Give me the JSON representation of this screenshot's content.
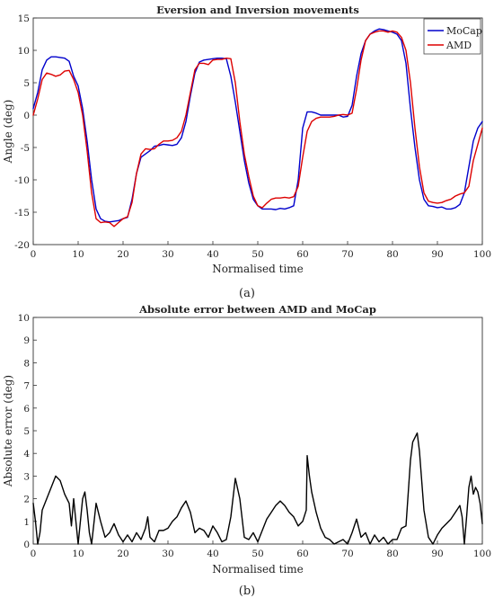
{
  "chart_data": [
    {
      "type": "line",
      "panel_label": "(a)",
      "title": "Eversion and Inversion movements",
      "xlabel": "Normalised time",
      "ylabel": "Angle (deg)",
      "xlim": [
        0,
        100
      ],
      "ylim": [
        -20,
        15
      ],
      "xticks": [
        0,
        10,
        20,
        30,
        40,
        50,
        60,
        70,
        80,
        90,
        100
      ],
      "yticks": [
        -20,
        -15,
        -10,
        -5,
        0,
        5,
        10,
        15
      ],
      "grid": true,
      "legend_position": "top-right",
      "series": [
        {
          "name": "MoCap",
          "color": "#0000cc",
          "x": [
            0,
            1,
            2,
            3,
            4,
            5,
            6,
            7,
            8,
            9,
            10,
            11,
            12,
            13,
            14,
            15,
            16,
            17,
            18,
            19,
            20,
            21,
            22,
            23,
            24,
            25,
            26,
            27,
            28,
            29,
            30,
            31,
            32,
            33,
            34,
            35,
            36,
            37,
            38,
            39,
            40,
            41,
            42,
            43,
            44,
            45,
            46,
            47,
            48,
            49,
            50,
            51,
            52,
            53,
            54,
            55,
            56,
            57,
            58,
            59,
            60,
            61,
            62,
            63,
            64,
            65,
            66,
            67,
            68,
            69,
            70,
            71,
            72,
            73,
            74,
            75,
            76,
            77,
            78,
            79,
            80,
            81,
            82,
            83,
            84,
            85,
            86,
            87,
            88,
            89,
            90,
            91,
            92,
            93,
            94,
            95,
            96,
            97,
            98,
            99,
            100
          ],
          "y": [
            1,
            3.5,
            7,
            8.5,
            9,
            9,
            8.9,
            8.8,
            8.3,
            6,
            4.5,
            1,
            -4,
            -10,
            -14.5,
            -16,
            -16.4,
            -16.5,
            -16.4,
            -16.3,
            -16,
            -15.8,
            -13,
            -9,
            -6.5,
            -6,
            -5.5,
            -4.8,
            -4.7,
            -4.5,
            -4.6,
            -4.7,
            -4.5,
            -3.5,
            -1,
            3,
            6.5,
            8.2,
            8.5,
            8.6,
            8.7,
            8.8,
            8.8,
            8.7,
            6,
            2,
            -2.5,
            -7,
            -10.5,
            -13,
            -14,
            -14.5,
            -14.5,
            -14.5,
            -14.6,
            -14.4,
            -14.5,
            -14.3,
            -14,
            -10,
            -2,
            0.5,
            0.5,
            0.3,
            0,
            0,
            0,
            0,
            0,
            -0.3,
            -0.2,
            1.5,
            6,
            9.5,
            11.5,
            12.5,
            13,
            13.3,
            13.2,
            13,
            12.8,
            12.5,
            11.5,
            8,
            1,
            -5,
            -10,
            -13,
            -14,
            -14.1,
            -14.3,
            -14.2,
            -14.5,
            -14.5,
            -14.3,
            -13.8,
            -12,
            -8,
            -4,
            -2,
            -1
          ]
        },
        {
          "name": "AMD",
          "color": "#dd0000",
          "x": [
            0,
            1,
            2,
            3,
            4,
            5,
            6,
            7,
            8,
            9,
            10,
            11,
            12,
            13,
            14,
            15,
            16,
            17,
            18,
            19,
            20,
            21,
            22,
            23,
            24,
            25,
            26,
            27,
            28,
            29,
            30,
            31,
            32,
            33,
            34,
            35,
            36,
            37,
            38,
            39,
            40,
            41,
            42,
            43,
            44,
            45,
            46,
            47,
            48,
            49,
            50,
            51,
            52,
            53,
            54,
            55,
            56,
            57,
            58,
            59,
            60,
            61,
            62,
            63,
            64,
            65,
            66,
            67,
            68,
            69,
            70,
            71,
            72,
            73,
            74,
            75,
            76,
            77,
            78,
            79,
            80,
            81,
            82,
            83,
            84,
            85,
            86,
            87,
            88,
            89,
            90,
            91,
            92,
            93,
            94,
            95,
            96,
            97,
            98,
            99,
            100
          ],
          "y": [
            0,
            2.5,
            5.5,
            6.5,
            6.3,
            6,
            6.2,
            6.8,
            6.9,
            5.5,
            3.5,
            0,
            -5.5,
            -12,
            -16,
            -16.6,
            -16.5,
            -16.6,
            -17.2,
            -16.6,
            -16,
            -15.7,
            -13.5,
            -9,
            -6,
            -5.2,
            -5.3,
            -5.2,
            -4.5,
            -4,
            -4,
            -3.9,
            -3.5,
            -2.5,
            0,
            3.5,
            7,
            8,
            8,
            7.8,
            8.5,
            8.6,
            8.6,
            8.8,
            8.7,
            5,
            -1,
            -6,
            -9.5,
            -12.5,
            -14,
            -14.3,
            -13.6,
            -13,
            -12.8,
            -12.8,
            -12.7,
            -12.8,
            -12.6,
            -11,
            -6.5,
            -2.5,
            -1,
            -0.5,
            -0.3,
            -0.3,
            -0.3,
            -0.2,
            0,
            0.1,
            0,
            0.3,
            4,
            8.5,
            11.5,
            12.5,
            12.8,
            13,
            13,
            12.8,
            13,
            12.8,
            12,
            10,
            5,
            -2,
            -8,
            -12,
            -13.3,
            -13.5,
            -13.6,
            -13.5,
            -13.2,
            -13,
            -12.5,
            -12.2,
            -12,
            -11,
            -7,
            -4.5,
            -2
          ]
        }
      ]
    },
    {
      "type": "line",
      "panel_label": "(b)",
      "title": "Absolute error between AMD and MoCap",
      "xlabel": "Normalised time",
      "ylabel": "Absolute error (deg)",
      "xlim": [
        0,
        100
      ],
      "ylim": [
        0,
        10
      ],
      "xticks": [
        0,
        10,
        20,
        30,
        40,
        50,
        60,
        70,
        80,
        90,
        100
      ],
      "yticks": [
        0,
        1,
        2,
        3,
        4,
        5,
        6,
        7,
        8,
        9,
        10
      ],
      "grid": true,
      "series": [
        {
          "color": "#000000",
          "x": [
            0,
            0.5,
            1,
            1.5,
            2,
            3,
            4,
            5,
            6,
            7,
            8,
            8.5,
            9,
            9.5,
            10,
            10.5,
            11,
            11.5,
            12,
            12.5,
            13,
            14,
            15,
            16,
            17,
            18,
            19,
            20,
            21,
            22,
            23,
            24,
            25,
            25.5,
            26,
            27,
            28,
            29,
            30,
            31,
            32,
            33,
            34,
            35,
            36,
            37,
            38,
            39,
            40,
            41,
            42,
            43,
            44,
            45,
            46,
            47,
            48,
            49,
            50,
            51,
            52,
            53,
            54,
            55,
            56,
            57,
            58,
            59,
            60,
            60.8,
            61,
            61.5,
            62,
            63,
            64,
            65,
            66,
            67,
            68,
            69,
            70,
            71,
            72,
            73,
            74,
            75,
            76,
            77,
            78,
            79,
            80,
            81,
            82,
            83,
            84,
            84.5,
            85,
            85.5,
            86,
            87,
            88,
            89,
            90,
            91,
            92,
            93,
            94,
            95,
            95.5,
            96,
            96.5,
            97,
            97.5,
            98,
            98.5,
            99,
            99.5,
            100
          ],
          "y": [
            1.8,
            1.0,
            0.0,
            0.5,
            1.5,
            2.0,
            2.5,
            3.0,
            2.8,
            2.2,
            1.8,
            0.8,
            2.0,
            1.0,
            0.0,
            1.0,
            2.0,
            2.3,
            1.5,
            0.5,
            0.0,
            1.8,
            1.0,
            0.3,
            0.5,
            0.9,
            0.4,
            0.1,
            0.4,
            0.1,
            0.5,
            0.2,
            0.7,
            1.2,
            0.3,
            0.1,
            0.6,
            0.6,
            0.7,
            1.0,
            1.2,
            1.6,
            1.9,
            1.4,
            0.5,
            0.7,
            0.6,
            0.3,
            0.8,
            0.5,
            0.1,
            0.2,
            1.2,
            2.9,
            2.0,
            0.3,
            0.2,
            0.5,
            0.1,
            0.6,
            1.1,
            1.4,
            1.7,
            1.9,
            1.7,
            1.4,
            1.2,
            0.8,
            1.0,
            1.5,
            3.9,
            3.0,
            2.3,
            1.4,
            0.7,
            0.3,
            0.2,
            0.0,
            0.1,
            0.2,
            0.0,
            0.5,
            1.1,
            0.3,
            0.5,
            0.0,
            0.4,
            0.1,
            0.3,
            0.0,
            0.2,
            0.2,
            0.7,
            0.8,
            3.7,
            4.5,
            4.7,
            4.9,
            4.1,
            1.5,
            0.3,
            0.0,
            0.4,
            0.7,
            0.9,
            1.1,
            1.4,
            1.7,
            1.2,
            0.0,
            1.2,
            2.5,
            3.0,
            2.2,
            2.5,
            2.3,
            1.8,
            0.9
          ]
        }
      ]
    }
  ]
}
